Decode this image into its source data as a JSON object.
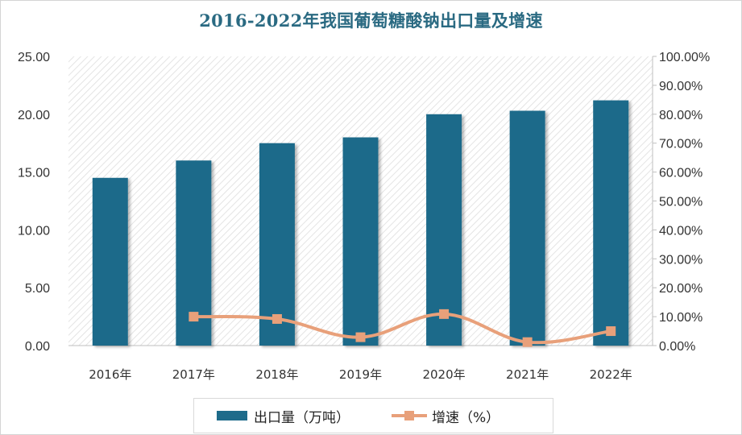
{
  "chart_data": {
    "type": "bar",
    "title": "2016-2022年我国葡萄糖酸钠出口量及增速",
    "categories": [
      "2016年",
      "2017年",
      "2018年",
      "2019年",
      "2020年",
      "2021年",
      "2022年"
    ],
    "series": [
      {
        "name": "出口量（万吨）",
        "type": "bar",
        "axis": "left",
        "color": "#1e6b8a",
        "values": [
          14.5,
          16.0,
          17.5,
          18.0,
          20.0,
          20.3,
          21.2
        ]
      },
      {
        "name": "增速（%）",
        "type": "line",
        "axis": "right",
        "color": "#e8a07a",
        "values": [
          null,
          10.0,
          9.2,
          2.9,
          10.9,
          1.2,
          5.0
        ]
      }
    ],
    "y_left": {
      "ylim": [
        0,
        25
      ],
      "ticks": [
        "0.00",
        "5.00",
        "10.00",
        "15.00",
        "20.00",
        "25.00"
      ]
    },
    "y_right": {
      "ylim": [
        0,
        100
      ],
      "ticks": [
        "0.00%",
        "10.00%",
        "20.00%",
        "30.00%",
        "40.00%",
        "50.00%",
        "60.00%",
        "70.00%",
        "80.00%",
        "90.00%",
        "100.00%"
      ]
    },
    "legend_position": "bottom",
    "background_pattern": "diagonal-hatch"
  }
}
